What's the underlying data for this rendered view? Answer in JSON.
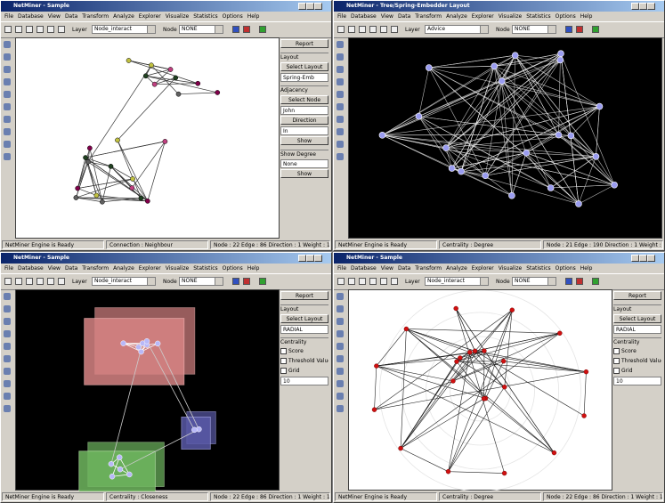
{
  "menu": [
    "File",
    "Database",
    "View",
    "Data",
    "Transform",
    "Analyze",
    "Explorer",
    "Visualize",
    "Statistics",
    "Options",
    "Help"
  ],
  "windows": [
    {
      "title": "NetMiner - Sample",
      "layer_label": "Layer",
      "layer": "Node_interact",
      "node_label": "Node",
      "node": "NONE",
      "panel": [
        {
          "type": "button",
          "text": "Report"
        },
        {
          "type": "label",
          "text": "Layout"
        },
        {
          "type": "button",
          "text": "Select Layout"
        },
        {
          "type": "select",
          "text": "Spring-Emb"
        },
        {
          "type": "label",
          "text": "Adjacency"
        },
        {
          "type": "button",
          "text": "Select Node"
        },
        {
          "type": "select",
          "text": "John"
        },
        {
          "type": "button",
          "text": "Direction"
        },
        {
          "type": "select",
          "text": "In"
        },
        {
          "type": "button",
          "text": "Show"
        },
        {
          "type": "label",
          "text": "Show Degree"
        },
        {
          "type": "select",
          "text": "None"
        },
        {
          "type": "button",
          "text": "Show"
        }
      ],
      "status": [
        "NetMiner Engine is Ready",
        "Connection : Neighbour",
        "Node : 22  Edge : 86  Direction : 1  Weight : 1"
      ]
    },
    {
      "title": "NetMiner - Tree/Spring-Embedder Layout",
      "layer_label": "Layer",
      "layer": "Advice",
      "node_label": "Node",
      "node": "NONE",
      "panel": [],
      "status": [
        "NetMiner Engine is Ready",
        "Centrality : Degree",
        "Node : 21  Edge : 190  Direction : 1  Weight : 1"
      ]
    },
    {
      "title": "NetMiner - Sample",
      "layer_label": "Layer",
      "layer": "Node_interact",
      "node_label": "Node",
      "node": "NONE",
      "panel": [
        {
          "type": "button",
          "text": "Report"
        },
        {
          "type": "label",
          "text": "Layout"
        },
        {
          "type": "button",
          "text": "Select Layout"
        },
        {
          "type": "select",
          "text": "RADIAL"
        },
        {
          "type": "label",
          "text": "Centrality"
        },
        {
          "type": "check",
          "text": "Score"
        },
        {
          "type": "check",
          "text": "Threshold Value"
        },
        {
          "type": "check",
          "text": "Grid"
        },
        {
          "type": "select",
          "text": "10"
        }
      ],
      "status": [
        "NetMiner Engine is Ready",
        "Centrality : Closeness",
        "Node : 22  Edge : 86  Direction : 1  Weight : 1"
      ]
    },
    {
      "title": "NetMiner - Sample",
      "layer_label": "Layer",
      "layer": "Node_interact",
      "node_label": "Node",
      "node": "NONE",
      "panel": [
        {
          "type": "button",
          "text": "Report"
        },
        {
          "type": "label",
          "text": "Layout"
        },
        {
          "type": "button",
          "text": "Select Layout"
        },
        {
          "type": "select",
          "text": "RADIAL"
        },
        {
          "type": "label",
          "text": "Centrality"
        },
        {
          "type": "check",
          "text": "Score"
        },
        {
          "type": "check",
          "text": "Threshold Value"
        },
        {
          "type": "check",
          "text": "Grid"
        },
        {
          "type": "select",
          "text": "10"
        }
      ],
      "status": [
        "NetMiner Engine is Ready",
        "Centrality : Degree",
        "Node : 22  Edge : 86  Direction : 1  Weight : 1"
      ]
    }
  ]
}
